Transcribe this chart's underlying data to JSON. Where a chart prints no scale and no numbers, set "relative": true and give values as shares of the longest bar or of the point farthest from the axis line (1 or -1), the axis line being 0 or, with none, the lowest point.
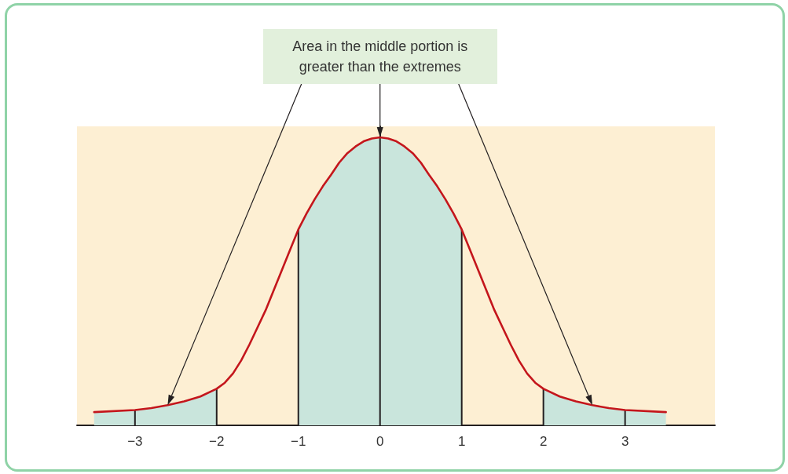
{
  "chart_data": {
    "type": "line",
    "annotations": [
      "Area in the middle portion is greater than the extremes"
    ],
    "x": [
      -3.5,
      -3,
      -2.8,
      -2.6,
      -2.4,
      -2.2,
      -2,
      -1.9,
      -1.8,
      -1.7,
      -1.6,
      -1.5,
      -1.4,
      -1.3,
      -1.2,
      -1.1,
      -1,
      -0.9,
      -0.8,
      -0.7,
      -0.6,
      -0.5,
      -0.4,
      -0.3,
      -0.2,
      -0.1,
      0,
      0.1,
      0.2,
      0.3,
      0.4,
      0.5,
      0.6,
      0.7,
      0.8,
      0.9,
      1,
      1.1,
      1.2,
      1.3,
      1.4,
      1.5,
      1.6,
      1.7,
      1.8,
      1.9,
      2,
      2.2,
      2.4,
      2.6,
      2.8,
      3,
      3.5
    ],
    "series": [
      {
        "type": "area",
        "color": "#c9e5dc",
        "values": [
          0.046,
          0.053,
          0.06,
          0.07,
          0.083,
          0.1,
          0.127,
          null,
          null,
          null,
          null,
          null,
          null,
          null,
          null,
          null,
          0.68,
          0.735,
          0.785,
          0.83,
          0.87,
          0.912,
          0.945,
          0.968,
          0.986,
          0.996,
          1,
          0.996,
          0.986,
          0.968,
          0.945,
          0.912,
          0.87,
          0.83,
          0.785,
          0.735,
          0.68,
          null,
          null,
          null,
          null,
          null,
          null,
          null,
          null,
          null,
          0.127,
          0.1,
          0.083,
          0.07,
          0.06,
          0.053,
          0.046
        ]
      },
      {
        "color": "#c4161c",
        "values": [
          0.046,
          0.053,
          0.06,
          0.07,
          0.083,
          0.1,
          0.127,
          0.148,
          0.18,
          0.225,
          0.28,
          0.34,
          0.4,
          0.47,
          0.54,
          0.61,
          0.68,
          0.735,
          0.785,
          0.83,
          0.87,
          0.912,
          0.945,
          0.968,
          0.986,
          0.996,
          1,
          0.996,
          0.986,
          0.968,
          0.945,
          0.912,
          0.87,
          0.83,
          0.785,
          0.735,
          0.68,
          0.61,
          0.54,
          0.47,
          0.4,
          0.34,
          0.28,
          0.225,
          0.18,
          0.148,
          0.127,
          0.1,
          0.083,
          0.07,
          0.06,
          0.053,
          0.046
        ]
      },
      {
        "type": "bar",
        "color": "#231f20",
        "x": [
          -3,
          -2,
          -1,
          0,
          1,
          2,
          3
        ],
        "values": [
          0.053,
          0.127,
          0.68,
          1,
          0.68,
          0.127,
          0.053
        ]
      }
    ],
    "relative": true,
    "xlim": [
      -3.71,
      4.1
    ],
    "xticks": [
      {
        "value": -3,
        "label": "−3"
      },
      {
        "value": -2,
        "label": "−2"
      },
      {
        "value": -1,
        "label": "−1"
      },
      0,
      1,
      2,
      3
    ],
    "tick_labels": "x",
    "marker": "none",
    "line_style": "solid"
  }
}
